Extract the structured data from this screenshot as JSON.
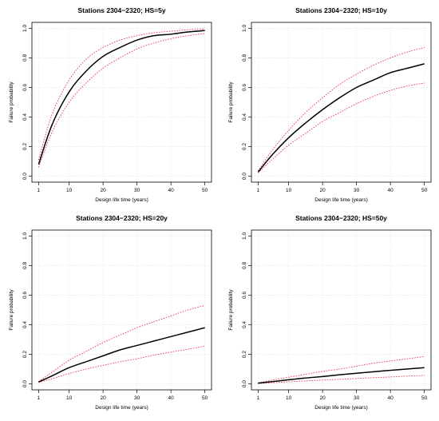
{
  "chart_data": [
    {
      "type": "line",
      "title": "Stations 2304−2320; HS=5y",
      "xlabel": "Design life time (years)",
      "ylabel": "Failure probability",
      "xlim": [
        1,
        50
      ],
      "ylim": [
        0,
        1
      ],
      "xticks": [
        1,
        10,
        20,
        30,
        40,
        50
      ],
      "yticks": [
        0.0,
        0.2,
        0.4,
        0.6,
        0.8,
        1.0
      ],
      "grid": true,
      "x": [
        1,
        5,
        10,
        15,
        20,
        25,
        30,
        35,
        40,
        45,
        50
      ],
      "series": [
        {
          "role": "estimate",
          "color": "#000000",
          "values": [
            0.08,
            0.35,
            0.57,
            0.71,
            0.81,
            0.87,
            0.92,
            0.95,
            0.96,
            0.975,
            0.985
          ]
        },
        {
          "role": "upper",
          "color": "#e8384f",
          "values": [
            0.11,
            0.42,
            0.65,
            0.79,
            0.87,
            0.92,
            0.95,
            0.97,
            0.98,
            0.99,
            0.995
          ]
        },
        {
          "role": "lower",
          "color": "#e8384f",
          "values": [
            0.06,
            0.3,
            0.5,
            0.63,
            0.73,
            0.8,
            0.86,
            0.9,
            0.93,
            0.95,
            0.965
          ]
        }
      ]
    },
    {
      "type": "line",
      "title": "Stations 2304−2320; HS=10y",
      "xlabel": "Design life time (years)",
      "ylabel": "Failure probability",
      "xlim": [
        1,
        50
      ],
      "ylim": [
        0,
        1
      ],
      "xticks": [
        1,
        10,
        20,
        30,
        40,
        50
      ],
      "yticks": [
        0.0,
        0.2,
        0.4,
        0.6,
        0.8,
        1.0
      ],
      "grid": true,
      "x": [
        1,
        5,
        10,
        15,
        20,
        25,
        30,
        35,
        40,
        45,
        50
      ],
      "series": [
        {
          "role": "estimate",
          "color": "#000000",
          "values": [
            0.028,
            0.14,
            0.26,
            0.36,
            0.45,
            0.53,
            0.6,
            0.65,
            0.7,
            0.73,
            0.76
          ]
        },
        {
          "role": "upper",
          "color": "#e8384f",
          "values": [
            0.035,
            0.17,
            0.31,
            0.43,
            0.53,
            0.62,
            0.69,
            0.75,
            0.8,
            0.84,
            0.87
          ]
        },
        {
          "role": "lower",
          "color": "#e8384f",
          "values": [
            0.022,
            0.11,
            0.21,
            0.29,
            0.37,
            0.43,
            0.49,
            0.54,
            0.58,
            0.61,
            0.63
          ]
        }
      ]
    },
    {
      "type": "line",
      "title": "Stations 2304−2320; HS=20y",
      "xlabel": "Design life time (years)",
      "ylabel": "Failure probability",
      "xlim": [
        1,
        50
      ],
      "ylim": [
        0,
        1
      ],
      "xticks": [
        1,
        10,
        20,
        30,
        40,
        50
      ],
      "yticks": [
        0.0,
        0.2,
        0.4,
        0.6,
        0.8,
        1.0
      ],
      "grid": true,
      "x": [
        1,
        5,
        10,
        15,
        20,
        25,
        30,
        35,
        40,
        45,
        50
      ],
      "series": [
        {
          "role": "estimate",
          "color": "#000000",
          "values": [
            0.013,
            0.055,
            0.11,
            0.15,
            0.19,
            0.23,
            0.26,
            0.29,
            0.32,
            0.35,
            0.38
          ]
        },
        {
          "role": "upper",
          "color": "#e8384f",
          "values": [
            0.016,
            0.08,
            0.16,
            0.22,
            0.28,
            0.33,
            0.38,
            0.42,
            0.46,
            0.5,
            0.53
          ]
        },
        {
          "role": "lower",
          "color": "#e8384f",
          "values": [
            0.01,
            0.035,
            0.07,
            0.1,
            0.125,
            0.15,
            0.17,
            0.195,
            0.215,
            0.235,
            0.255
          ]
        }
      ]
    },
    {
      "type": "line",
      "title": "Stations 2304−2320; HS=50y",
      "xlabel": "Design life time (years)",
      "ylabel": "Failure probability",
      "xlim": [
        1,
        50
      ],
      "ylim": [
        0,
        1
      ],
      "xticks": [
        1,
        10,
        20,
        30,
        40,
        50
      ],
      "yticks": [
        0.0,
        0.2,
        0.4,
        0.6,
        0.8,
        1.0
      ],
      "grid": true,
      "x": [
        1,
        5,
        10,
        15,
        20,
        25,
        30,
        35,
        40,
        45,
        50
      ],
      "series": [
        {
          "role": "estimate",
          "color": "#000000",
          "values": [
            0.005,
            0.015,
            0.028,
            0.04,
            0.05,
            0.062,
            0.072,
            0.082,
            0.092,
            0.101,
            0.11
          ]
        },
        {
          "role": "upper",
          "color": "#e8384f",
          "values": [
            0.007,
            0.025,
            0.045,
            0.065,
            0.085,
            0.1,
            0.12,
            0.14,
            0.155,
            0.17,
            0.185
          ]
        },
        {
          "role": "lower",
          "color": "#e8384f",
          "values": [
            0.003,
            0.008,
            0.014,
            0.02,
            0.026,
            0.031,
            0.037,
            0.042,
            0.047,
            0.053,
            0.058
          ]
        }
      ]
    }
  ]
}
